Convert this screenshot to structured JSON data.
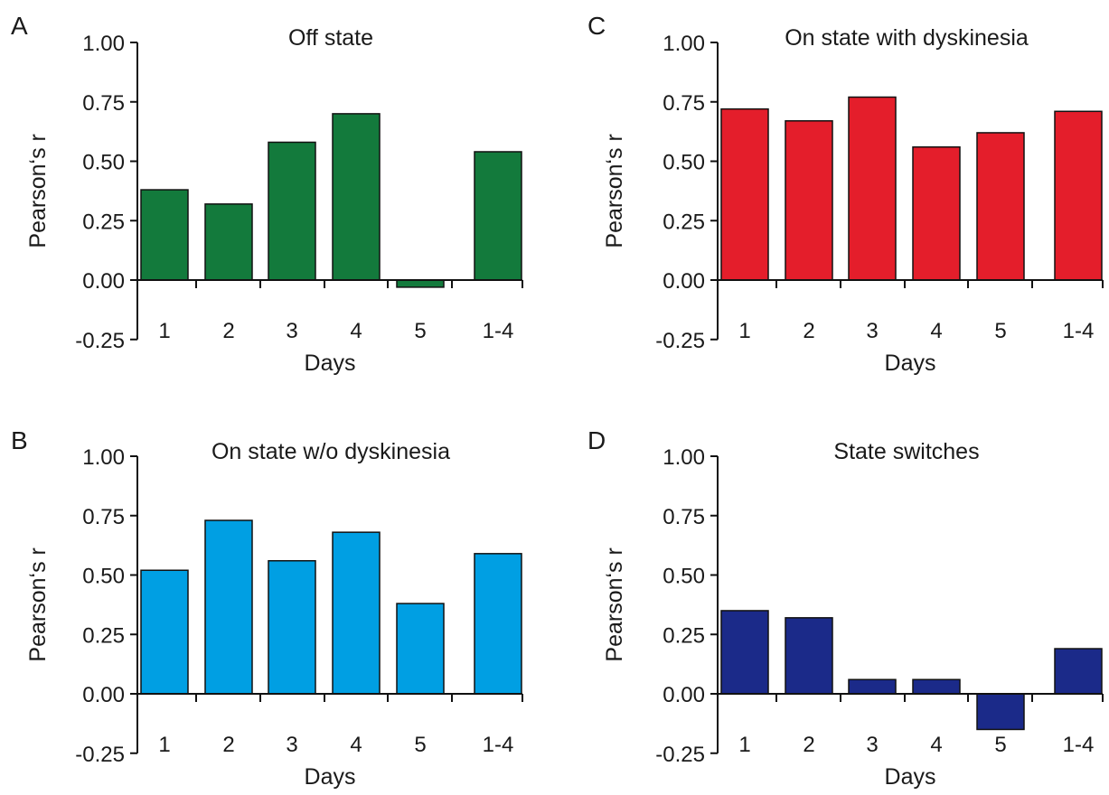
{
  "chart_data": [
    {
      "panel": "A",
      "type": "bar",
      "title": "Off state",
      "xlabel": "Days",
      "ylabel": "Pearson‘s r",
      "ylim": [
        -0.25,
        1.0
      ],
      "yticks": [
        "1.00",
        "0.75",
        "0.50",
        "0.25",
        "0.00",
        "-0.25"
      ],
      "categories": [
        "1",
        "2",
        "3",
        "4",
        "5",
        "1-4"
      ],
      "values": [
        0.38,
        0.32,
        0.58,
        0.7,
        -0.03,
        0.54
      ],
      "color": "#137a3c"
    },
    {
      "panel": "C",
      "type": "bar",
      "title": "On state with dyskinesia",
      "xlabel": "Days",
      "ylabel": "Pearson‘s r",
      "ylim": [
        -0.25,
        1.0
      ],
      "yticks": [
        "1.00",
        "0.75",
        "0.50",
        "0.25",
        "0.00",
        "-0.25"
      ],
      "categories": [
        "1",
        "2",
        "3",
        "4",
        "5",
        "1-4"
      ],
      "values": [
        0.72,
        0.67,
        0.77,
        0.56,
        0.62,
        0.71
      ],
      "color": "#e41e2b"
    },
    {
      "panel": "B",
      "type": "bar",
      "title": "On state w/o dyskinesia",
      "xlabel": "Days",
      "ylabel": "Pearson‘s r",
      "ylim": [
        -0.25,
        1.0
      ],
      "yticks": [
        "1.00",
        "0.75",
        "0.50",
        "0.25",
        "0.00",
        "-0.25"
      ],
      "categories": [
        "1",
        "2",
        "3",
        "4",
        "5",
        "1-4"
      ],
      "values": [
        0.52,
        0.73,
        0.56,
        0.68,
        0.38,
        0.59
      ],
      "color": "#009fe3"
    },
    {
      "panel": "D",
      "type": "bar",
      "title": "State switches",
      "xlabel": "Days",
      "ylabel": "Pearson‘s r",
      "ylim": [
        -0.25,
        1.0
      ],
      "yticks": [
        "1.00",
        "0.75",
        "0.50",
        "0.25",
        "0.00",
        "-0.25"
      ],
      "categories": [
        "1",
        "2",
        "3",
        "4",
        "5",
        "1-4"
      ],
      "values": [
        0.35,
        0.32,
        0.06,
        0.06,
        -0.15,
        0.19
      ],
      "color": "#1b2a89"
    }
  ]
}
